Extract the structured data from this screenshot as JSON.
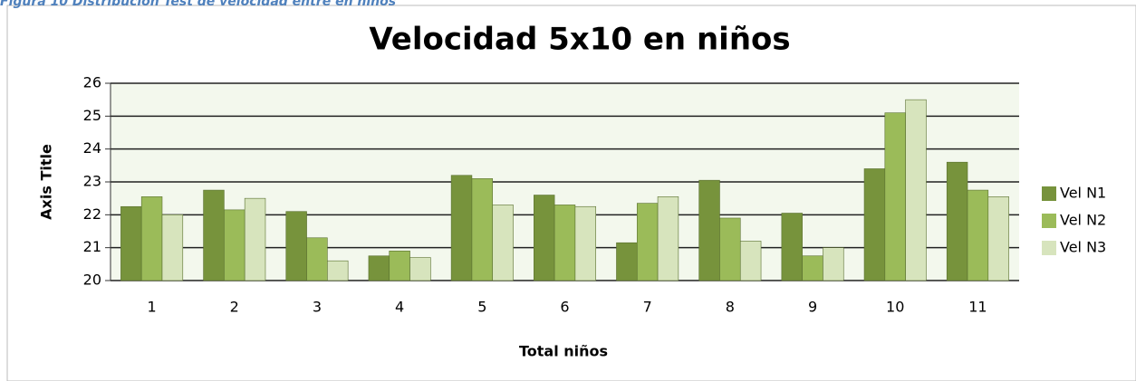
{
  "caption": "Figura 10 Distribución Test de velocidad entre en niños",
  "chart_data": {
    "type": "bar",
    "title": "Velocidad 5x10 en niños",
    "y_label": "Axis Title",
    "x_label": "Total niños",
    "categories": [
      "1",
      "2",
      "3",
      "4",
      "5",
      "6",
      "7",
      "8",
      "9",
      "10",
      "11"
    ],
    "series": [
      {
        "name": "Vel N1",
        "color": "#77933c",
        "values": [
          22.25,
          22.75,
          22.1,
          20.75,
          23.2,
          22.6,
          21.15,
          23.05,
          22.05,
          23.4,
          23.6
        ]
      },
      {
        "name": "Vel N2",
        "color": "#9bbb59",
        "values": [
          22.55,
          22.15,
          21.3,
          20.9,
          23.1,
          22.3,
          22.35,
          21.9,
          20.75,
          25.1,
          22.75
        ]
      },
      {
        "name": "Vel N3",
        "color": "#d7e4bd",
        "values": [
          22.0,
          22.5,
          20.6,
          20.7,
          22.3,
          22.25,
          22.55,
          21.2,
          21.0,
          25.5,
          22.55
        ]
      }
    ],
    "ylim": [
      20,
      26
    ],
    "yticks": [
      20,
      21,
      22,
      23,
      24,
      25,
      26
    ],
    "grid": true,
    "legend": "right"
  }
}
